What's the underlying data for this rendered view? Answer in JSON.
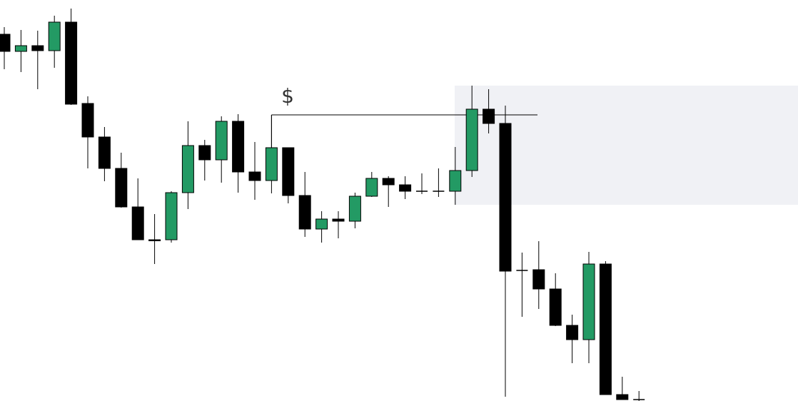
{
  "chart_data": {
    "type": "candlestick",
    "annotation": "$",
    "level": 401,
    "zone": {
      "low": 275,
      "high": 442
    },
    "ylim": [
      0,
      562
    ],
    "up_color": "#239a64",
    "down_color": "#000000",
    "zone_color": "#f0f1f5",
    "open": [
      514,
      490,
      498,
      491,
      531,
      417,
      370,
      326,
      272,
      226,
      226,
      292,
      358,
      338,
      392,
      321,
      309,
      355,
      288,
      241,
      255,
      252,
      287,
      312,
      303,
      294,
      294,
      294,
      323,
      409,
      389,
      183,
      184,
      157,
      106,
      86,
      192,
      9,
      2
    ],
    "high": [
      524,
      520,
      519,
      540,
      550,
      427,
      384,
      348,
      312,
      262,
      294,
      392,
      366,
      399,
      402,
      363,
      401,
      355,
      321,
      266,
      266,
      292,
      321,
      315,
      315,
      319,
      326,
      356,
      442,
      437,
      414,
      208,
      224,
      179,
      121,
      209,
      196,
      34,
      14
    ],
    "low": [
      465,
      461,
      437,
      467,
      415,
      326,
      308,
      271,
      226,
      192,
      222,
      269,
      309,
      306,
      292,
      282,
      291,
      277,
      230,
      222,
      228,
      242,
      286,
      272,
      283,
      290,
      286,
      275,
      314,
      375,
      6,
      118,
      129,
      105,
      53,
      53,
      9,
      2,
      0
    ],
    "close": [
      490,
      498,
      491,
      531,
      416,
      370,
      326,
      272,
      226,
      225,
      292,
      358,
      338,
      392,
      321,
      309,
      355,
      288,
      241,
      255,
      252,
      287,
      312,
      303,
      294,
      294,
      294,
      323,
      409,
      389,
      182,
      183,
      157,
      106,
      86,
      192,
      9,
      2,
      2
    ]
  }
}
